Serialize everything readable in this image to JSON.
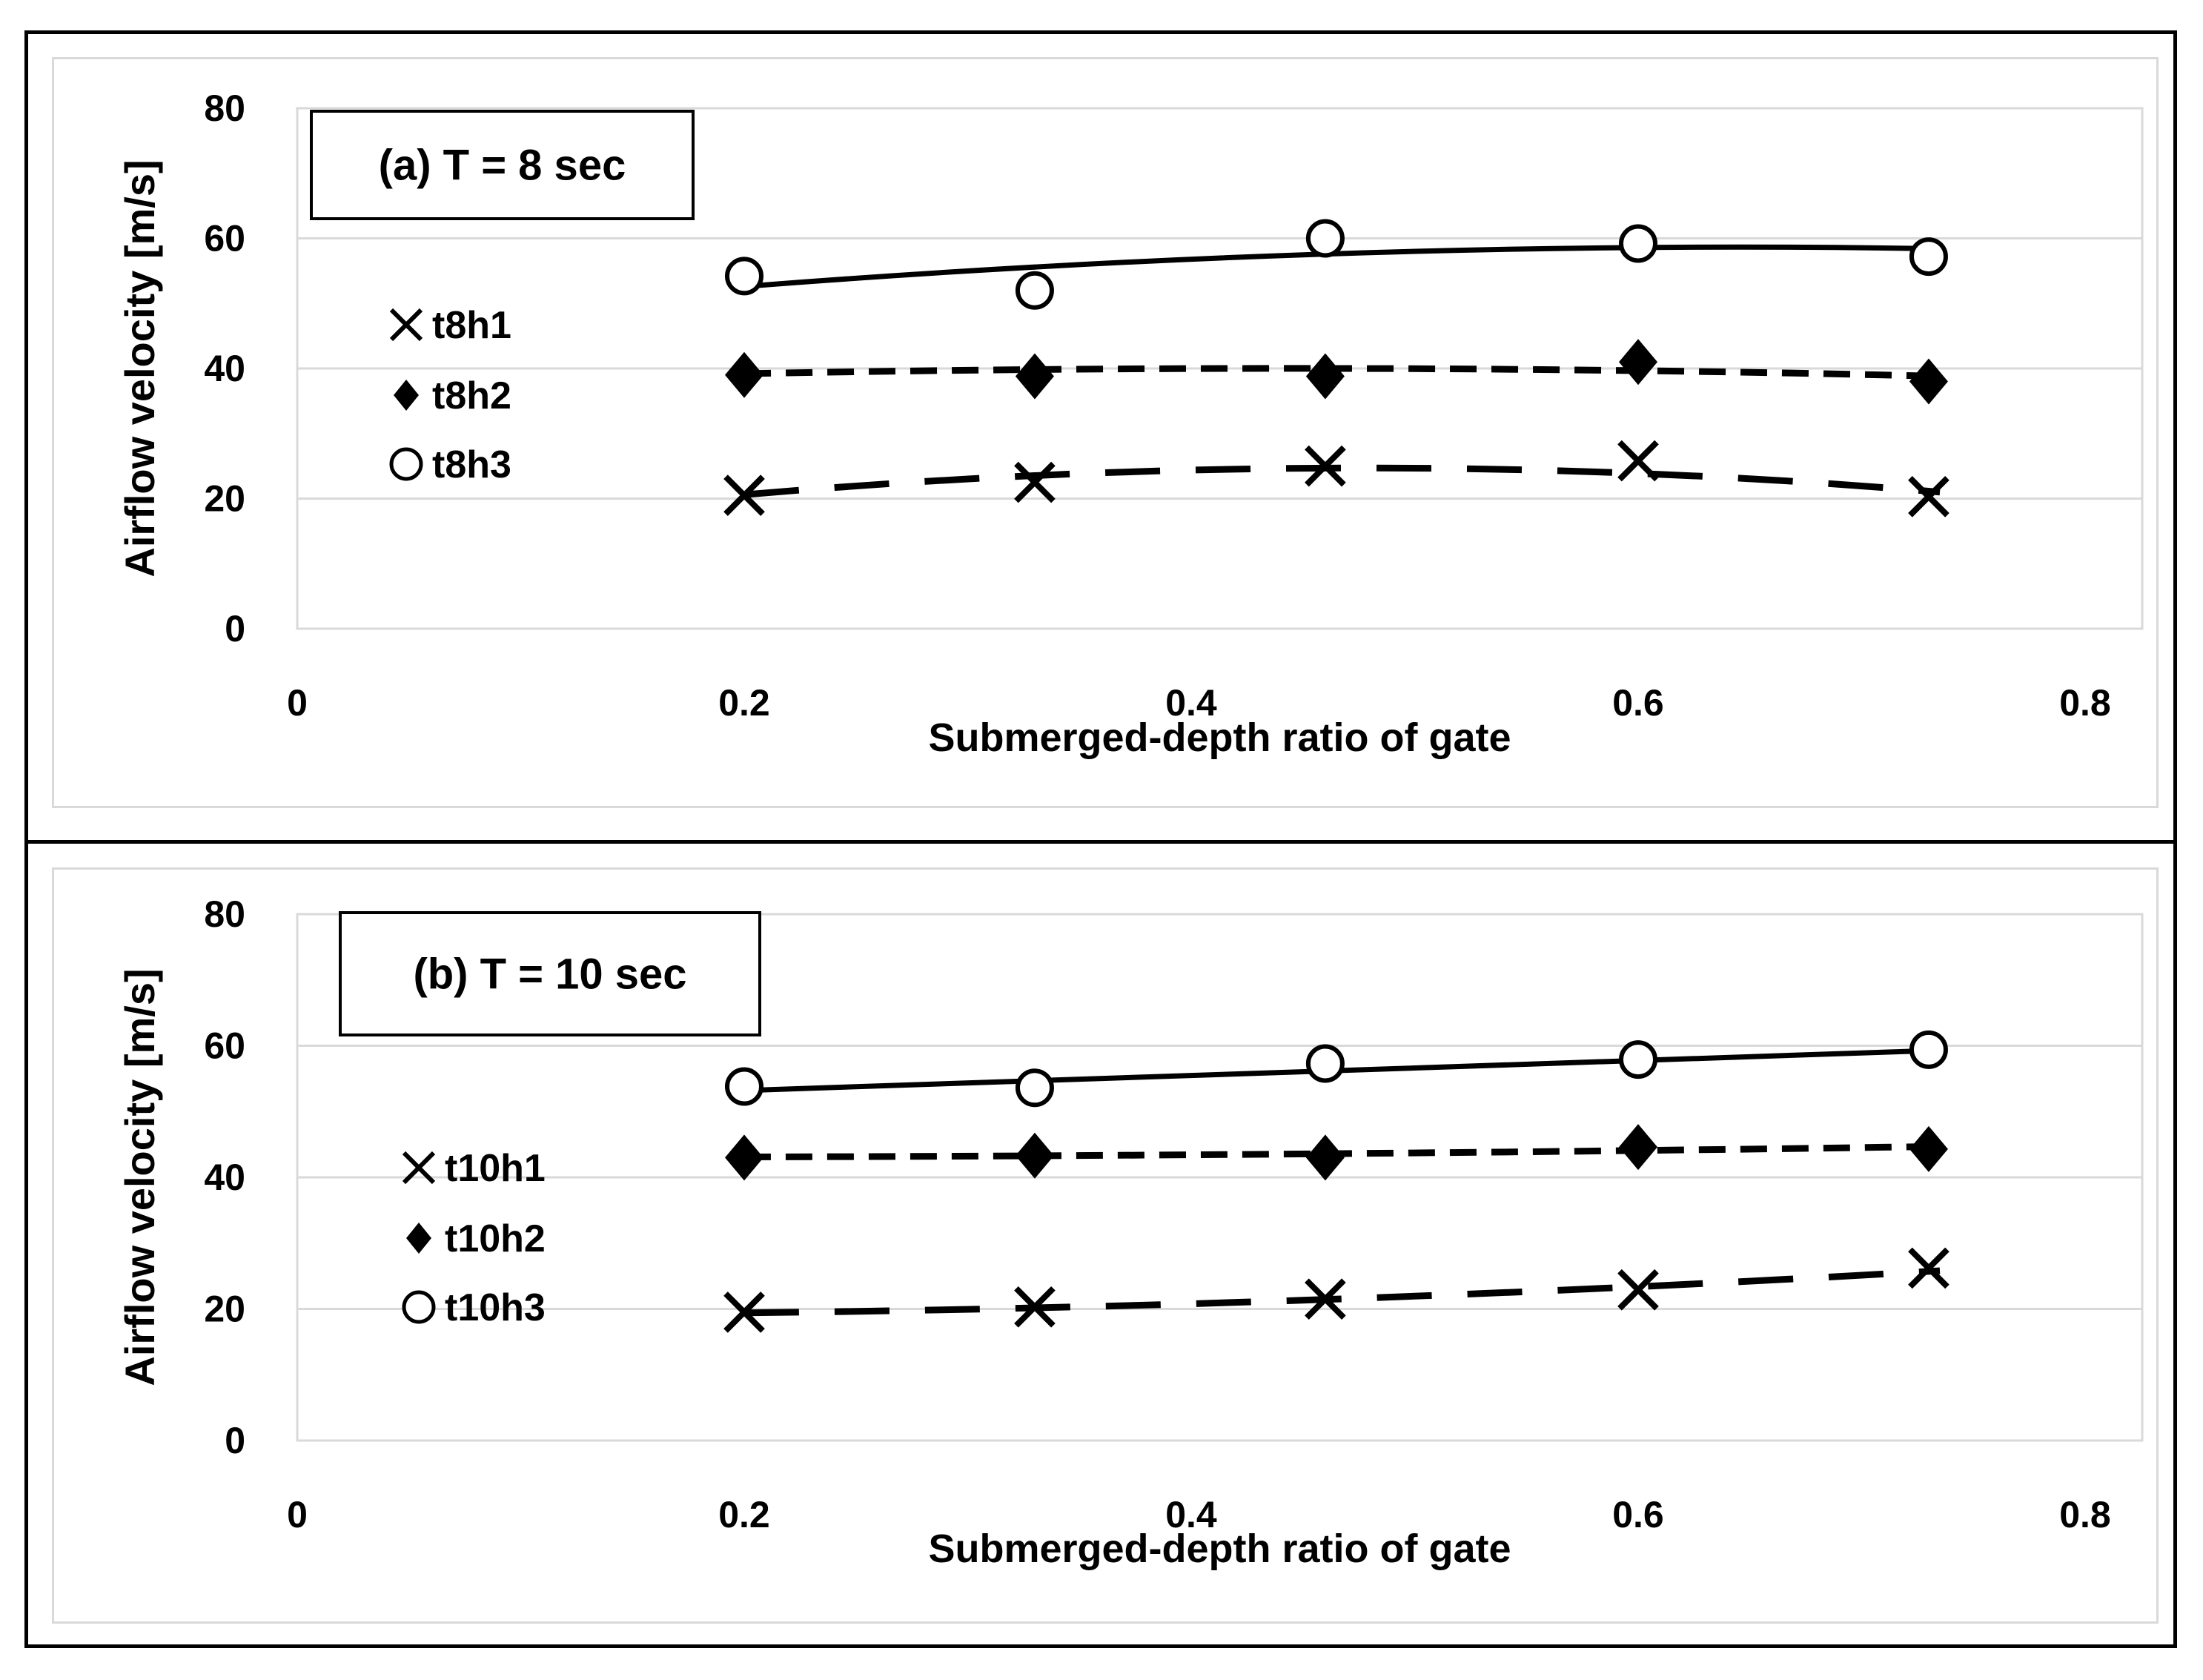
{
  "figure": {
    "background": "#ffffff",
    "frame_color": "#000000",
    "gridline_color": "#d9d9d9",
    "panel_border_color": "#d9d9d9",
    "series_color": "#000000"
  },
  "chart_data": [
    {
      "type": "scatter",
      "title": "(a)  T = 8 sec",
      "xlabel": "Submerged-depth ratio of gate",
      "ylabel": "Airflow velocity [m/s]",
      "xlim": [
        0,
        0.825
      ],
      "ylim": [
        0,
        80
      ],
      "x_ticks": [
        0,
        0.2,
        0.4,
        0.6,
        0.8
      ],
      "x_tick_labels": [
        "0",
        "0.2",
        "0.4",
        "0.6",
        "0.8"
      ],
      "y_ticks": [
        0,
        20,
        40,
        60,
        80
      ],
      "y_tick_labels": [
        "0",
        "20",
        "40",
        "60",
        "80"
      ],
      "grid": "horizontal",
      "legend_position": "inside-left",
      "x": [
        0.2,
        0.33,
        0.46,
        0.6,
        0.73
      ],
      "series": [
        {
          "name": "t8h1",
          "marker": "x",
          "line": "long-dash",
          "values": [
            20.5,
            22.5,
            25.0,
            25.8,
            20.3
          ],
          "trend": [
            [
              0.2,
              20.6
            ],
            [
              0.47,
              24.7
            ],
            [
              0.735,
              21.0
            ]
          ]
        },
        {
          "name": "t8h2",
          "marker": "diamond",
          "line": "short-dash",
          "values": [
            39.0,
            38.8,
            38.8,
            41.0,
            38.0
          ],
          "trend": [
            [
              0.2,
              39.2
            ],
            [
              0.47,
              40.0
            ],
            [
              0.735,
              38.8
            ]
          ]
        },
        {
          "name": "t8h3",
          "marker": "circle",
          "line": "solid",
          "values": [
            54.2,
            52.0,
            60.0,
            59.2,
            57.2
          ],
          "trend": [
            [
              0.2,
              52.6
            ],
            [
              0.47,
              57.7
            ],
            [
              0.735,
              58.4
            ]
          ]
        }
      ],
      "legend": [
        "t8h1",
        "t8h2",
        "t8h3"
      ]
    },
    {
      "type": "scatter",
      "title": "(b) T = 10 sec",
      "xlabel": "Submerged-depth ratio of gate",
      "ylabel": "Airflow velocity [m/s]",
      "xlim": [
        0,
        0.825
      ],
      "ylim": [
        0,
        80
      ],
      "x_ticks": [
        0,
        0.2,
        0.4,
        0.6,
        0.8
      ],
      "x_tick_labels": [
        "0",
        "0.2",
        "0.4",
        "0.6",
        "0.8"
      ],
      "y_ticks": [
        0,
        20,
        40,
        60,
        80
      ],
      "y_tick_labels": [
        "0",
        "20",
        "40",
        "60",
        "80"
      ],
      "grid": "horizontal",
      "legend_position": "inside-left",
      "x": [
        0.2,
        0.33,
        0.46,
        0.6,
        0.73
      ],
      "series": [
        {
          "name": "t10h1",
          "marker": "x",
          "line": "long-dash",
          "values": [
            19.5,
            20.3,
            21.5,
            22.9,
            26.2
          ],
          "trend": [
            [
              0.2,
              19.4
            ],
            [
              0.465,
              21.5
            ],
            [
              0.735,
              25.8
            ]
          ]
        },
        {
          "name": "t10h2",
          "marker": "diamond",
          "line": "short-dash",
          "values": [
            43.0,
            43.3,
            43.0,
            44.6,
            44.3
          ],
          "trend": [
            [
              0.2,
              43.1
            ],
            [
              0.465,
              43.6
            ],
            [
              0.735,
              44.7
            ]
          ]
        },
        {
          "name": "t10h3",
          "marker": "circle",
          "line": "solid",
          "values": [
            53.8,
            53.6,
            57.3,
            57.9,
            59.4
          ],
          "trend": [
            [
              0.2,
              53.2
            ],
            [
              0.465,
              56.2
            ],
            [
              0.735,
              59.3
            ]
          ]
        }
      ],
      "legend": [
        "t10h1",
        "t10h2",
        "t10h3"
      ]
    }
  ]
}
